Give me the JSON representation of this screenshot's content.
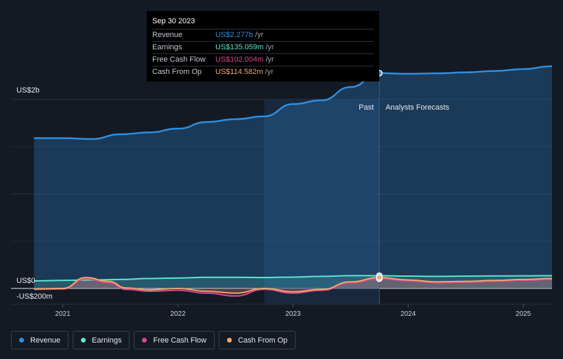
{
  "tooltip": {
    "date": "Sep 30 2023",
    "rows": [
      {
        "label": "Revenue",
        "value": "US$2.277b",
        "unit": "/yr",
        "color": "#2f8fe0"
      },
      {
        "label": "Earnings",
        "value": "US$135.059m",
        "unit": "/yr",
        "color": "#5ee6cf"
      },
      {
        "label": "Free Cash Flow",
        "value": "US$102.004m",
        "unit": "/yr",
        "color": "#d9488f"
      },
      {
        "label": "Cash From Op",
        "value": "US$114.582m",
        "unit": "/yr",
        "color": "#f0a868"
      }
    ]
  },
  "legend": [
    {
      "label": "Revenue",
      "color": "#2f8fe0"
    },
    {
      "label": "Earnings",
      "color": "#5ee6cf"
    },
    {
      "label": "Free Cash Flow",
      "color": "#d9488f"
    },
    {
      "label": "Cash From Op",
      "color": "#f0a868"
    }
  ],
  "chart_data": {
    "type": "area",
    "ylim": [
      -200,
      2400
    ],
    "y_tick_labels": [
      {
        "value": 2000,
        "label": "US$2b"
      },
      {
        "value": 0,
        "label": "US$0"
      },
      {
        "value": -200,
        "label": "-US$200m"
      }
    ],
    "x_ticks": [
      "2021",
      "2022",
      "2023",
      "2024",
      "2025"
    ],
    "xlim": [
      2020.55,
      2025.25
    ],
    "past_label": "Past",
    "forecast_label": "Analysts Forecasts",
    "past_end": 2023.75,
    "shaded_start": 2022.75,
    "series": [
      {
        "name": "Revenue",
        "color": "#2f8fe0",
        "x": [
          2020.75,
          2021.0,
          2021.25,
          2021.5,
          2021.75,
          2022.0,
          2022.25,
          2022.5,
          2022.75,
          2023.0,
          2023.25,
          2023.5,
          2023.75,
          2024.0,
          2024.25,
          2024.5,
          2024.75,
          2025.0,
          2025.25
        ],
        "y": [
          1590,
          1590,
          1580,
          1630,
          1650,
          1690,
          1760,
          1790,
          1820,
          1950,
          1990,
          2130,
          2277,
          2270,
          2275,
          2285,
          2300,
          2320,
          2350
        ]
      },
      {
        "name": "Earnings",
        "color": "#5ee6cf",
        "x": [
          2020.75,
          2021.0,
          2021.25,
          2021.5,
          2021.75,
          2022.0,
          2022.25,
          2022.5,
          2022.75,
          2023.0,
          2023.25,
          2023.5,
          2023.75,
          2024.0,
          2024.25,
          2024.5,
          2024.75,
          2025.0,
          2025.25
        ],
        "y": [
          80,
          85,
          90,
          95,
          105,
          110,
          118,
          118,
          115,
          120,
          128,
          135,
          135,
          130,
          128,
          130,
          132,
          133,
          135
        ]
      },
      {
        "name": "Free Cash Flow",
        "color": "#d9488f",
        "x": [
          2020.75,
          2021.0,
          2021.2,
          2021.4,
          2021.55,
          2021.75,
          2022.0,
          2022.25,
          2022.5,
          2022.75,
          2023.0,
          2023.25,
          2023.5,
          2023.75,
          2024.0,
          2024.25,
          2024.5,
          2024.75,
          2025.0,
          2025.25
        ],
        "y": [
          -10,
          -5,
          100,
          60,
          -10,
          -30,
          -20,
          -50,
          -80,
          -10,
          -50,
          -20,
          60,
          102,
          80,
          60,
          65,
          75,
          85,
          95
        ]
      },
      {
        "name": "Cash From Op",
        "color": "#f0a868",
        "x": [
          2020.75,
          2021.0,
          2021.2,
          2021.4,
          2021.55,
          2021.75,
          2022.0,
          2022.25,
          2022.5,
          2022.75,
          2023.0,
          2023.25,
          2023.5,
          2023.75,
          2024.0,
          2024.25,
          2024.5,
          2024.75,
          2025.0,
          2025.25
        ],
        "y": [
          -5,
          0,
          115,
          75,
          5,
          -15,
          0,
          -30,
          -50,
          0,
          -35,
          -10,
          70,
          115,
          90,
          70,
          75,
          85,
          95,
          105
        ]
      }
    ]
  }
}
